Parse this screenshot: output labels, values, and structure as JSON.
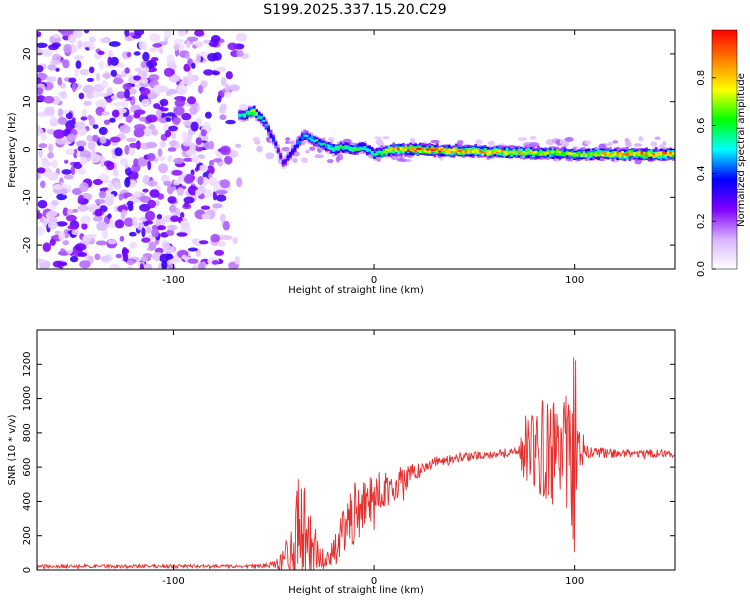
{
  "title": "S199.2025.337.15.20.C29",
  "chart_data": [
    {
      "type": "heatmap",
      "name": "spectrogram",
      "xlabel": "Height of straight line (km)",
      "ylabel": "Frequency (Hz)",
      "xlim": [
        -168,
        150
      ],
      "ylim": [
        -25,
        25
      ],
      "xticks": [
        -100,
        0,
        100
      ],
      "yticks": [
        -20,
        -10,
        0,
        10,
        20
      ],
      "colorbar": {
        "label": "Normalized spectral amplitude",
        "range": [
          0,
          1
        ],
        "ticks": [
          "0.0",
          "0.2",
          "0.4",
          "0.6",
          "0.8"
        ],
        "colors": [
          "#ffffff",
          "#d9b3ff",
          "#7f00ff",
          "#0000ff",
          "#00ffff",
          "#00ff00",
          "#ffff00",
          "#ff7f00",
          "#ff0000"
        ]
      },
      "ridge": {
        "x": [
          -67,
          -60,
          -55,
          -50,
          -45,
          -40,
          -35,
          -30,
          -25,
          -20,
          -15,
          -10,
          -5,
          0,
          10,
          20,
          40,
          60,
          80,
          95,
          100,
          120,
          150
        ],
        "y": [
          7,
          8,
          6,
          2,
          -3,
          0,
          3,
          2,
          1,
          0,
          0.5,
          0,
          0.5,
          -1,
          0,
          0,
          -0.3,
          -0.5,
          -0.7,
          -0.8,
          -1,
          -1,
          -1
        ],
        "amplitude": [
          0.5,
          0.7,
          0.5,
          0.35,
          0.3,
          0.4,
          0.45,
          0.5,
          0.5,
          0.6,
          0.6,
          0.6,
          0.55,
          0.55,
          0.8,
          0.9,
          0.85,
          0.8,
          0.75,
          0.7,
          0.7,
          0.8,
          0.85
        ]
      },
      "noise_region_x": [
        -168,
        -62
      ]
    },
    {
      "type": "line",
      "name": "snr",
      "xlabel": "Height of straight line (km)",
      "ylabel": "SNR (10 * v/v)",
      "xlim": [
        -168,
        150
      ],
      "ylim": [
        0,
        1400
      ],
      "xticks": [
        -100,
        0,
        100
      ],
      "yticks": [
        0,
        200,
        400,
        600,
        800,
        1000,
        1200
      ],
      "color": "#e53030",
      "envelope": {
        "x": [
          -168,
          -60,
          -50,
          -45,
          -40,
          -37,
          -35,
          -30,
          -25,
          -20,
          -15,
          -10,
          -5,
          0,
          10,
          20,
          25,
          30,
          40,
          60,
          72,
          75,
          80,
          85,
          90,
          95,
          99,
          100,
          103,
          105,
          120,
          150
        ],
        "base": [
          22,
          22,
          30,
          60,
          150,
          250,
          200,
          120,
          60,
          80,
          220,
          330,
          380,
          430,
          500,
          560,
          600,
          630,
          650,
          680,
          690,
          700,
          700,
          700,
          690,
          690,
          680,
          680,
          680,
          690,
          680,
          680
        ],
        "spread": [
          10,
          10,
          20,
          60,
          200,
          350,
          300,
          150,
          60,
          100,
          150,
          180,
          160,
          120,
          100,
          60,
          40,
          30,
          25,
          25,
          30,
          200,
          250,
          300,
          320,
          300,
          500,
          700,
          250,
          40,
          25,
          25
        ]
      }
    }
  ]
}
